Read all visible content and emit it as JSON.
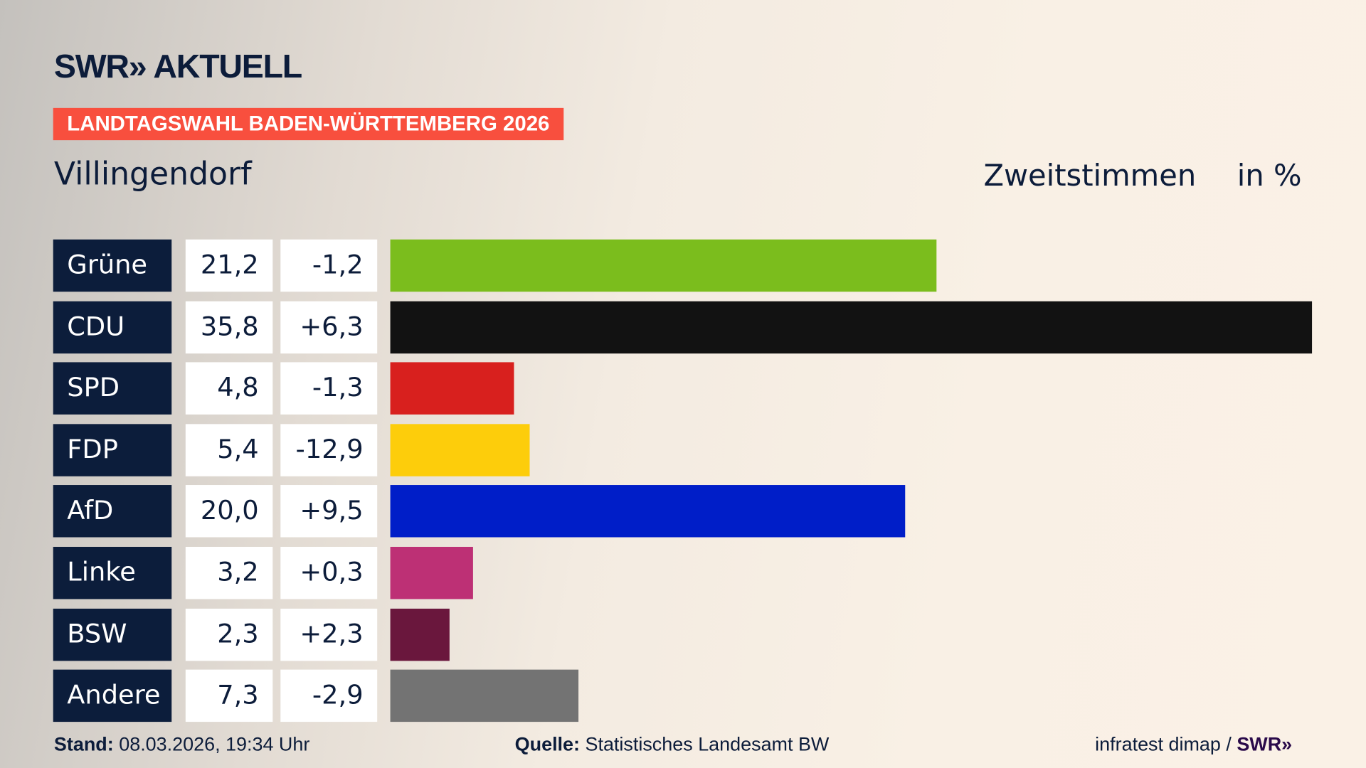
{
  "header": {
    "logo": "SWR» AKTUELL",
    "banner": "LANDTAGSWAHL BADEN-WÜRTTEMBERG 2026",
    "place": "Villingendorf",
    "measure": "Zweitstimmen",
    "unit": "in %"
  },
  "chart_data": {
    "type": "bar",
    "orientation": "horizontal",
    "categories": [
      "Grüne",
      "CDU",
      "SPD",
      "FDP",
      "AfD",
      "Linke",
      "BSW",
      "Andere"
    ],
    "values": [
      21.2,
      35.8,
      4.8,
      5.4,
      20.0,
      3.2,
      2.3,
      7.3
    ],
    "value_labels": [
      "21,2",
      "35,8",
      "4,8",
      "5,4",
      "20,0",
      "3,2",
      "2,3",
      "7,3"
    ],
    "change_labels": [
      "-1,2",
      "+6,3",
      "-1,3",
      "-12,9",
      "+9,5",
      "+0,3",
      "+2,3",
      "-2,9"
    ],
    "changes": [
      -1.2,
      6.3,
      -1.3,
      -12.9,
      9.5,
      0.3,
      2.3,
      -2.9
    ],
    "colors": [
      "#7bbd1d",
      "#121212",
      "#d8201e",
      "#fdcd0b",
      "#001ec8",
      "#bd3075",
      "#6a173d",
      "#737373"
    ],
    "title": "Zweitstimmen",
    "ylabel": "in %",
    "xlim": [
      0,
      35.8
    ]
  },
  "footer": {
    "stand_label": "Stand:",
    "stand": "08.03.2026, 19:34 Uhr",
    "quelle_label": "Quelle:",
    "quelle": "Statistisches Landesamt BW",
    "credit": "infratest dimap / ",
    "credit_logo": "SWR»"
  }
}
